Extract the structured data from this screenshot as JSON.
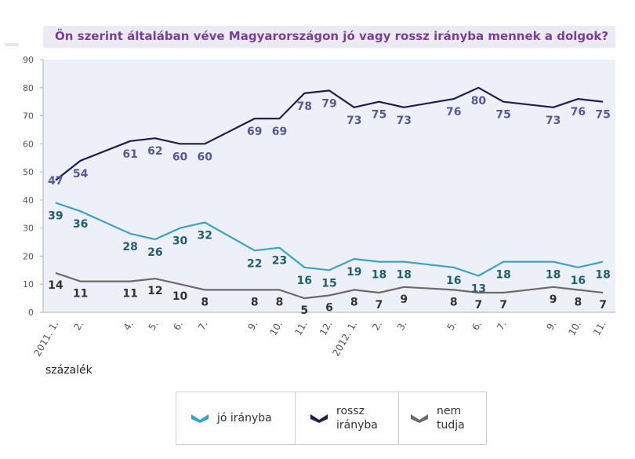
{
  "chart_data": {
    "type": "line",
    "title": "Ön szerint általában véve Magyarországon jó vagy rossz irányba mennek a dolgok?",
    "unit_label": "százalék",
    "ylim": [
      0,
      90
    ],
    "yticks": [
      0,
      10,
      20,
      30,
      40,
      50,
      60,
      70,
      80,
      90
    ],
    "grid": false,
    "legend_position": "bottom",
    "categories": [
      "2011. 1.",
      "2.",
      "4.",
      "5.",
      "6.",
      "7.",
      "9.",
      "10.",
      "11.",
      "12.",
      "2012. 1.",
      "2.",
      "3.",
      "5.",
      "6.",
      "7.",
      "9.",
      "10.",
      "11."
    ],
    "x_index": [
      0,
      1,
      3,
      4,
      5,
      6,
      8,
      9,
      10,
      11,
      12,
      13,
      14,
      16,
      17,
      18,
      20,
      21,
      22
    ],
    "series": [
      {
        "name": "jó irányba",
        "color": "#3aa3c8",
        "label_color": "#1f5f6e",
        "values": [
          39,
          36,
          28,
          26,
          30,
          32,
          22,
          23,
          16,
          15,
          19,
          18,
          18,
          16,
          13,
          18,
          18,
          16,
          18
        ]
      },
      {
        "name": "rossz irányba",
        "color": "#1e1c50",
        "label_color": "#5757a0",
        "values": [
          47,
          54,
          61,
          62,
          60,
          60,
          69,
          69,
          78,
          79,
          73,
          75,
          73,
          76,
          80,
          75,
          73,
          76,
          75
        ]
      },
      {
        "name": "nem tudja",
        "color": "#6b6b6b",
        "label_color": "#333333",
        "values": [
          14,
          11,
          11,
          12,
          10,
          8,
          8,
          8,
          5,
          6,
          8,
          7,
          9,
          8,
          7,
          7,
          9,
          8,
          7
        ]
      }
    ]
  },
  "legend": [
    {
      "label": "jó irányba",
      "icon": "chevron-swatch-blue",
      "color": "#3aa3c8"
    },
    {
      "label": "rossz\nirányba",
      "icon": "chevron-swatch-navy",
      "color": "#1e1c50"
    },
    {
      "label": "nem\ntudja",
      "icon": "chevron-swatch-gray",
      "color": "#6b6b6b"
    }
  ]
}
